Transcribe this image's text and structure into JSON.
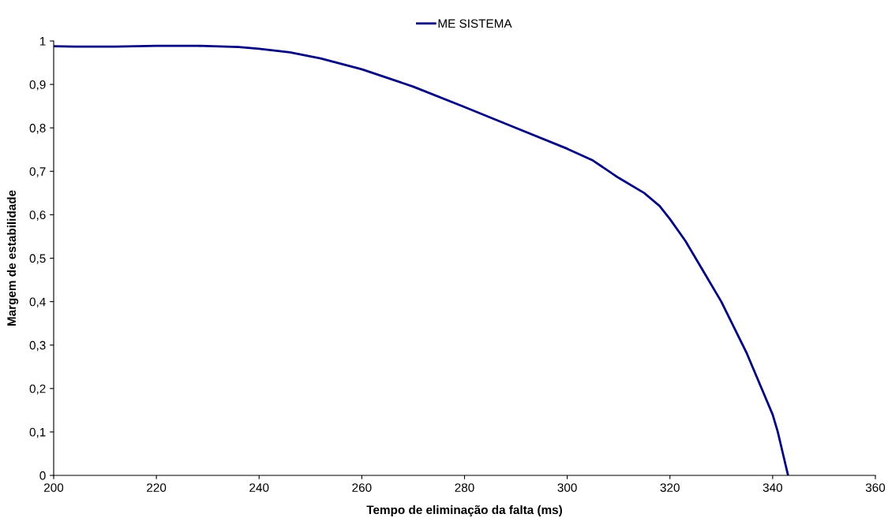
{
  "chart_data": {
    "type": "line",
    "xlabel": "Tempo de eliminação da falta (ms)",
    "ylabel": "Margem de estabilidade",
    "xlim": [
      200,
      360
    ],
    "xticks": [
      200,
      220,
      240,
      260,
      280,
      300,
      320,
      340,
      360
    ],
    "ylim": [
      0,
      1
    ],
    "yticks": [
      0,
      {
        "value": 0.1,
        "label": "0,1"
      },
      {
        "value": 0.2,
        "label": "0,2"
      },
      {
        "value": 0.3,
        "label": "0,3"
      },
      {
        "value": 0.4,
        "label": "0,4"
      },
      {
        "value": 0.5,
        "label": "0,5"
      },
      {
        "value": 0.6,
        "label": "0,6"
      },
      {
        "value": 0.7,
        "label": "0,7"
      },
      {
        "value": 0.8,
        "label": "0,8"
      },
      {
        "value": 0.9,
        "label": "0,9"
      },
      1
    ],
    "grid": false,
    "legend": "top",
    "marker": "none",
    "line_style": "solid",
    "series": [
      {
        "name": "ME SISTEMA",
        "color": "#000080",
        "x": [
          200,
          204,
          212,
          220,
          228,
          236,
          240,
          246,
          252,
          260,
          270,
          280,
          290,
          300,
          305,
          310,
          315,
          318,
          320,
          323,
          326,
          330,
          335,
          340,
          341,
          342,
          343
        ],
        "values": [
          0.988,
          0.987,
          0.987,
          0.989,
          0.989,
          0.986,
          0.982,
          0.974,
          0.96,
          0.935,
          0.895,
          0.848,
          0.8,
          0.752,
          0.725,
          0.685,
          0.65,
          0.62,
          0.59,
          0.54,
          0.48,
          0.4,
          0.28,
          0.14,
          0.1,
          0.05,
          0
        ]
      }
    ]
  }
}
